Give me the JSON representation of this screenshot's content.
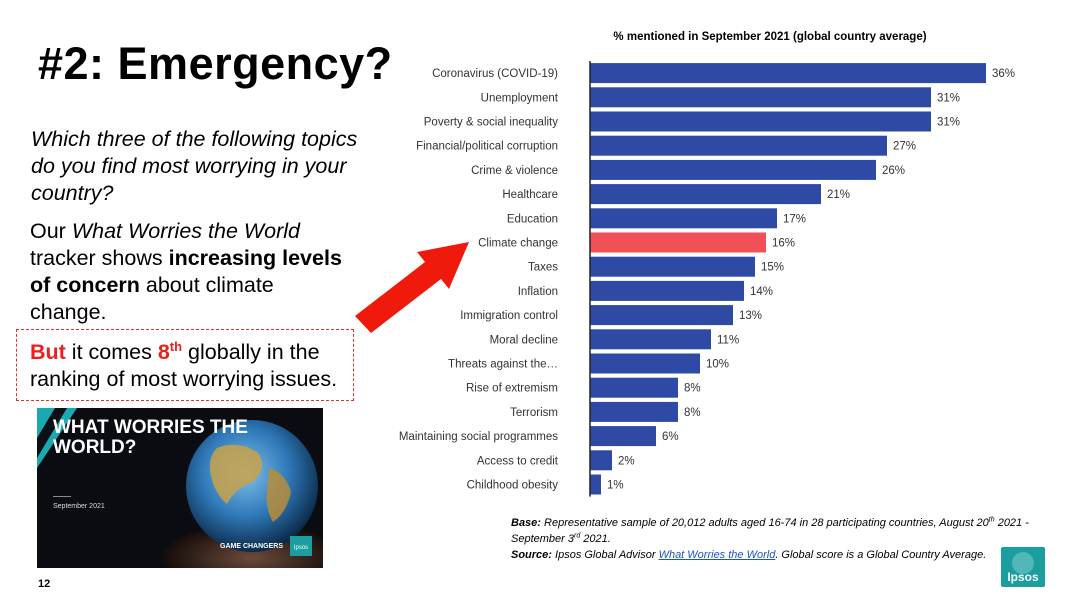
{
  "slide": {
    "title": "#2: Emergency?",
    "question": "Which three of the following topics do you find most worrying in your country?",
    "tracker": {
      "p1": "Our ",
      "p2": "What Worries the World",
      "p3": " tracker shows ",
      "p4": "increasing levels of concern",
      "p5": " about climate change."
    },
    "ranking": {
      "p1": "But",
      "p2": " it comes ",
      "p3": "8",
      "p4": "th",
      "p5": " globally in the ranking of most worrying issues."
    },
    "page_number": "12"
  },
  "thumbnail": {
    "title": "WHAT WORRIES THE WORLD?",
    "date": "September 2021",
    "tagline": "GAME CHANGERS",
    "brand": "Ipsos"
  },
  "notes": {
    "base_label": "Base:",
    "base_text": " Representative sample of 20,012 adults aged 16-74 in 28 participating countries, August 20",
    "base_sup1": "th",
    "base_text2": " 2021 - September 3",
    "base_sup2": "rd",
    "base_text3": " 2021.",
    "source_label": "Source:",
    "source_text1": " Ipsos Global Advisor ",
    "source_link": "What Worries the World",
    "source_text2": ". Global score is a Global Country Average."
  },
  "logo": {
    "text": "Ipsos"
  },
  "colors": {
    "bar": "#2e4aa4",
    "highlight": "#f05056",
    "arrow": "#f01a0c",
    "accent_red": "#e8211d",
    "logo": "#1a9ea0"
  },
  "chart_data": {
    "type": "bar",
    "orientation": "horizontal",
    "title": "% mentioned in September 2021 (global country average)",
    "categories": [
      "Coronavirus (COVID-19)",
      "Unemployment",
      "Poverty & social inequality",
      "Financial/political corruption",
      "Crime & violence",
      "Healthcare",
      "Education",
      "Climate change",
      "Taxes",
      "Inflation",
      "Immigration control",
      "Moral decline",
      "Threats against the…",
      "Rise of extremism",
      "Terrorism",
      "Maintaining social programmes",
      "Access to credit",
      "Childhood obesity"
    ],
    "values": [
      36,
      31,
      31,
      27,
      26,
      21,
      17,
      16,
      15,
      14,
      13,
      11,
      10,
      8,
      8,
      6,
      2,
      1
    ],
    "value_labels": [
      "36%",
      "31%",
      "31%",
      "27%",
      "26%",
      "21%",
      "17%",
      "16%",
      "15%",
      "14%",
      "13%",
      "11%",
      "10%",
      "8%",
      "8%",
      "6%",
      "2%",
      "1%"
    ],
    "highlight": "Climate change",
    "xlim": [
      0,
      36
    ],
    "grid": false,
    "legend": "none"
  }
}
